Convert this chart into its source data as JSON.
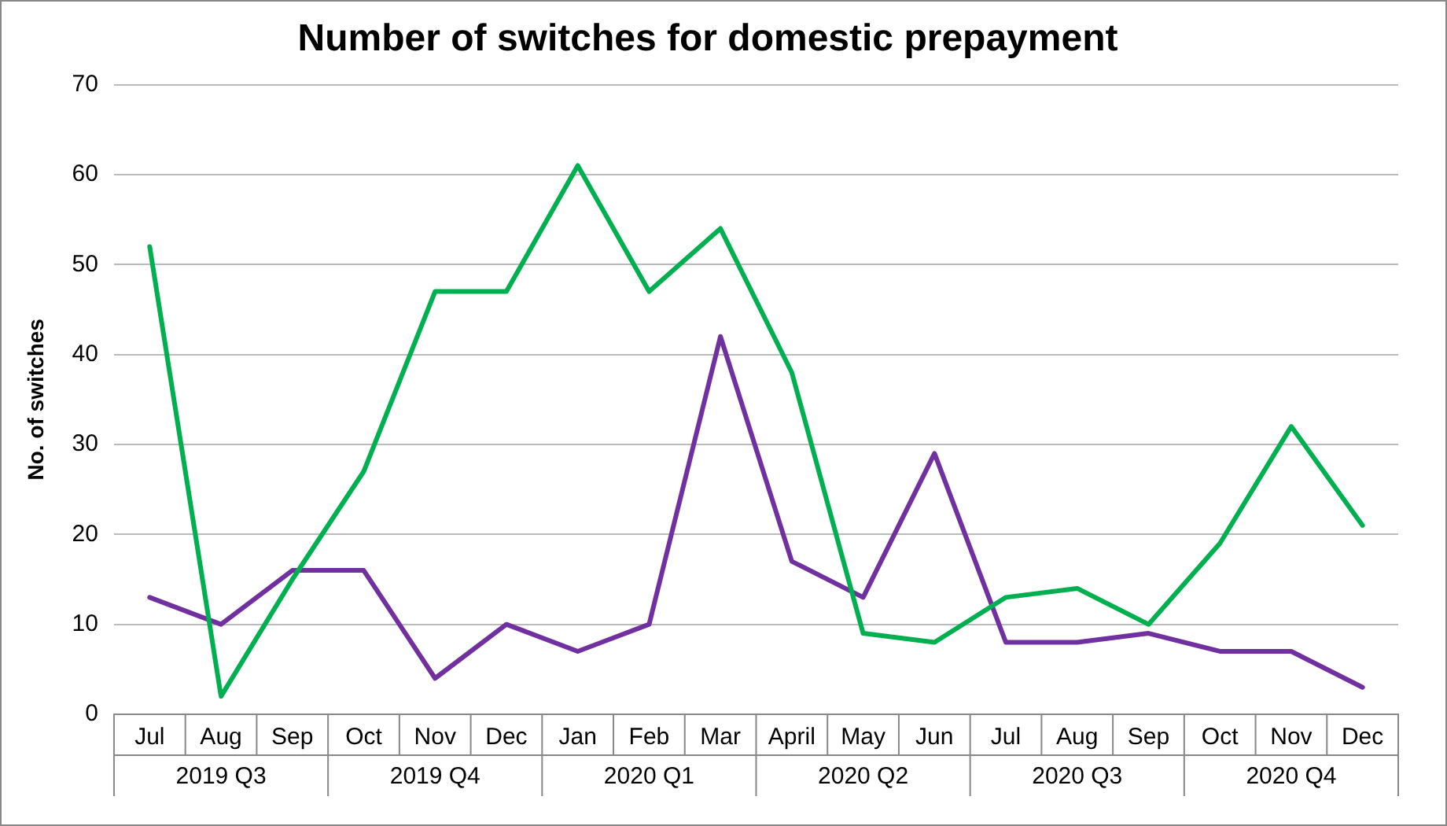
{
  "chart_data": {
    "type": "line",
    "title": "Number of switches for domestic prepayment",
    "ylabel": "No. of switches",
    "categories": [
      "Jul",
      "Aug",
      "Sep",
      "Oct",
      "Nov",
      "Dec",
      "Jan",
      "Feb",
      "Mar",
      "April",
      "May",
      "Jun",
      "Jul",
      "Aug",
      "Sep",
      "Oct",
      "Nov",
      "Dec"
    ],
    "annotations": [
      "2019 Q3",
      "2019 Q4",
      "2020 Q1",
      "2020 Q2",
      "2020 Q3",
      "2020 Q4"
    ],
    "series": [
      {
        "color": "#00b050",
        "values": [
          52,
          2,
          15,
          27,
          47,
          47,
          61,
          47,
          54,
          38,
          9,
          8,
          13,
          14,
          10,
          19,
          32,
          21
        ]
      },
      {
        "color": "#7030a0",
        "values": [
          13,
          10,
          16,
          16,
          4,
          10,
          7,
          10,
          42,
          17,
          13,
          29,
          8,
          8,
          9,
          7,
          7,
          3
        ]
      }
    ],
    "ylim": [
      0,
      70
    ],
    "yticks": [
      0,
      10,
      20,
      30,
      40,
      50,
      60,
      70
    ],
    "grid": "y",
    "legend": false,
    "marker": "none",
    "line_style": "solid"
  }
}
